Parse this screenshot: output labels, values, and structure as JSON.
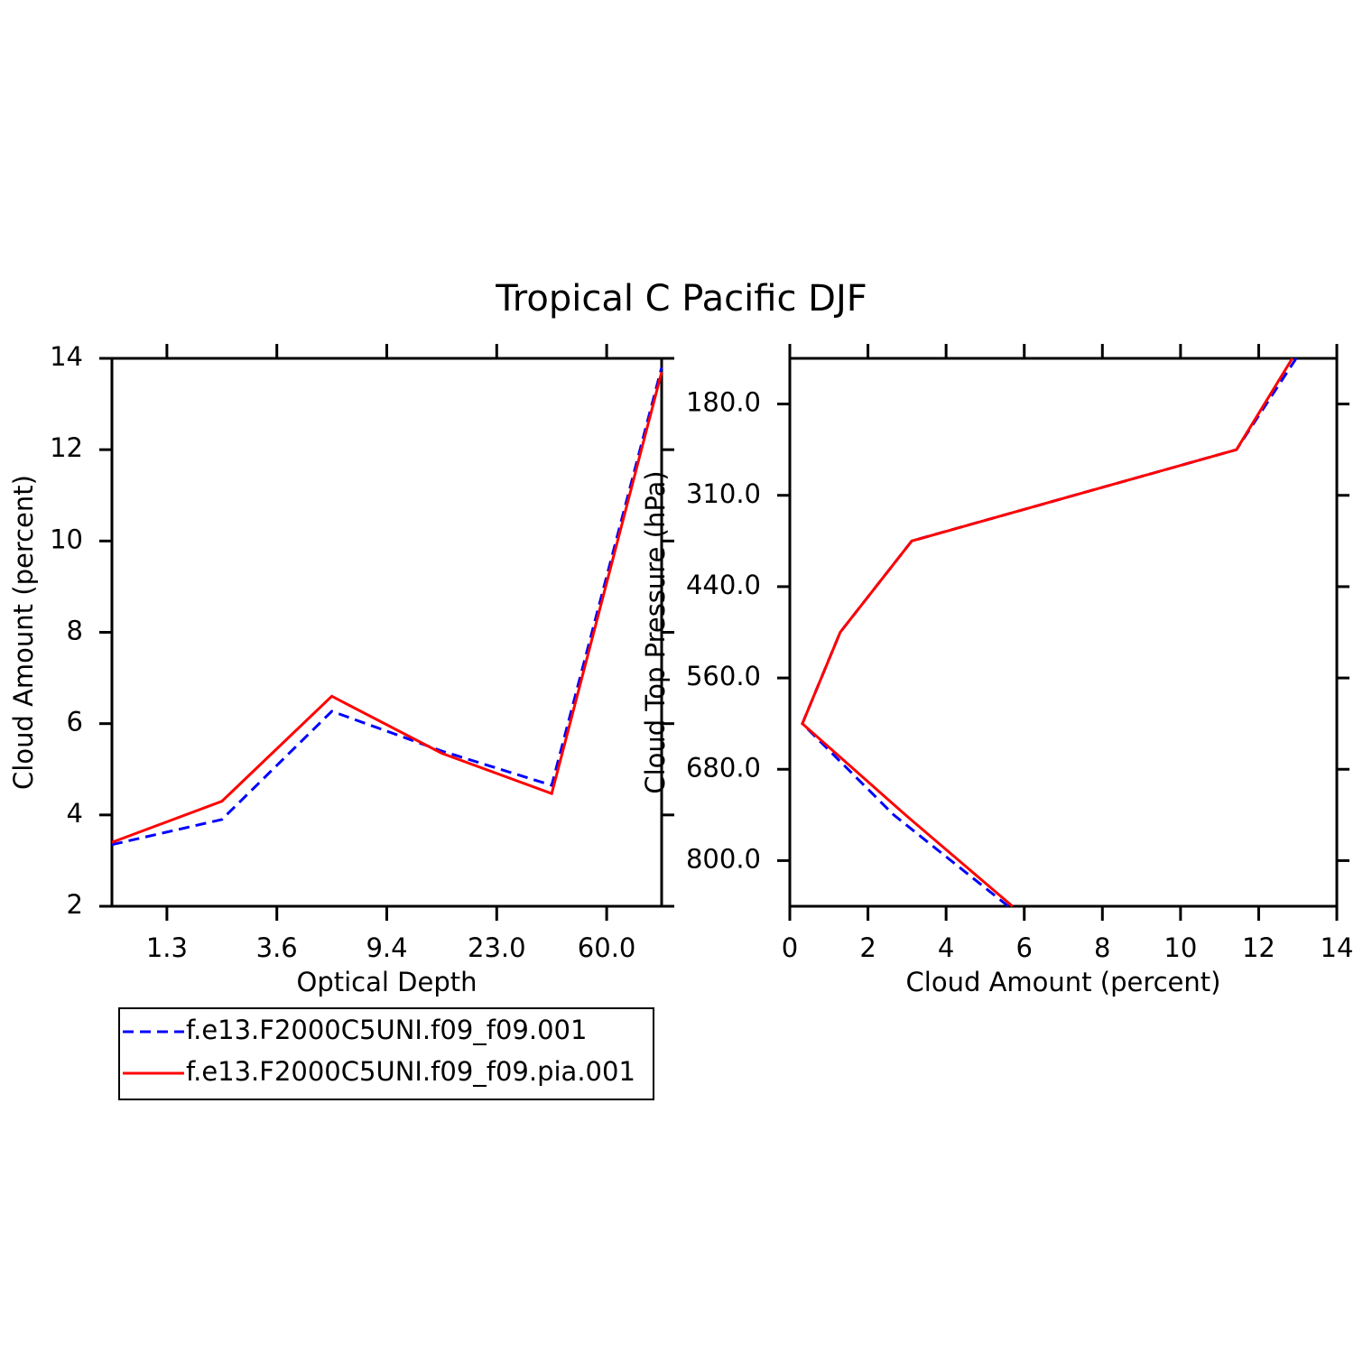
{
  "title": "Tropical C Pacific DJF",
  "chart_data": [
    {
      "type": "line",
      "x_label": "Optical Depth",
      "y_label": "Cloud Amount (percent)",
      "x": [
        0,
        1,
        2,
        3,
        4,
        5
      ],
      "xlim": [
        0,
        5
      ],
      "xticks": [
        {
          "value": 0.5,
          "label": "1.3"
        },
        {
          "value": 1.5,
          "label": "3.6"
        },
        {
          "value": 2.5,
          "label": "9.4"
        },
        {
          "value": 3.5,
          "label": "23.0"
        },
        {
          "value": 4.5,
          "label": "60.0"
        }
      ],
      "ylim": [
        2,
        14
      ],
      "yticks": [
        2,
        4,
        6,
        8,
        10,
        12,
        14
      ],
      "legend": "below",
      "series": [
        {
          "name": "f.e13.F2000C5UNI.f09_f09.001",
          "color": "#0000ff",
          "dash": "dashed",
          "values": [
            3.35,
            3.9,
            6.27,
            5.4,
            4.65,
            13.8
          ]
        },
        {
          "name": "f.e13.F2000C5UNI.f09_f09.pia.001",
          "color": "#ff0000",
          "dash": "solid",
          "values": [
            3.4,
            4.3,
            6.6,
            5.35,
            4.47,
            13.7
          ]
        }
      ]
    },
    {
      "type": "line",
      "orientation": "horizontal",
      "x_label": "Cloud Amount (percent)",
      "y_label": "Cloud Top Pressure (hPa)",
      "y": [
        0,
        1,
        2,
        3,
        4,
        5,
        6
      ],
      "ylim": [
        6,
        0
      ],
      "yticks": [
        {
          "value": 0.5,
          "label": "180.0"
        },
        {
          "value": 1.5,
          "label": "310.0"
        },
        {
          "value": 2.5,
          "label": "440.0"
        },
        {
          "value": 3.5,
          "label": "560.0"
        },
        {
          "value": 4.5,
          "label": "680.0"
        },
        {
          "value": 5.5,
          "label": "800.0"
        }
      ],
      "xlim": [
        0,
        14
      ],
      "xticks": [
        0,
        2,
        4,
        6,
        8,
        10,
        12,
        14
      ],
      "series": [
        {
          "color": "#0000ff",
          "dash": "dashed",
          "values": [
            12.96,
            11.43,
            3.12,
            1.29,
            0.32,
            2.66,
            5.59
          ]
        },
        {
          "color": "#ff0000",
          "dash": "solid",
          "values": [
            12.86,
            11.43,
            3.12,
            1.29,
            0.32,
            2.96,
            5.7
          ]
        }
      ]
    }
  ]
}
